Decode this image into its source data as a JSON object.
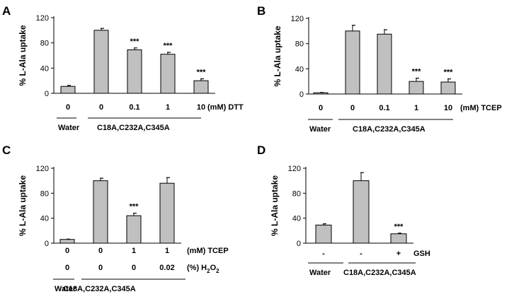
{
  "chart_data": [
    {
      "panel_label": "A",
      "type": "bar",
      "ylabel": "% L-Ala uptake",
      "ylim": [
        0,
        120
      ],
      "yticks": [
        "0",
        "40",
        "80",
        "120"
      ],
      "values": [
        11,
        100,
        69,
        62,
        20
      ],
      "errors": [
        1.5,
        3,
        3,
        3,
        3
      ],
      "significance": [
        "",
        "",
        "***",
        "***",
        "***"
      ],
      "condition_rows": [
        {
          "values": [
            "0",
            "0",
            "0.1",
            "1",
            "10"
          ],
          "unit": "(mM) DTT"
        }
      ],
      "groups": [
        {
          "label": "Water",
          "from": 0,
          "to": 0
        },
        {
          "label": "C18A,C232A,C345A",
          "from": 1,
          "to": 4
        }
      ]
    },
    {
      "panel_label": "B",
      "type": "bar",
      "ylabel": "% L-Ala uptake",
      "ylim": [
        0,
        120
      ],
      "yticks": [
        "0",
        "40",
        "80",
        "120"
      ],
      "values": [
        2,
        100,
        95,
        20,
        19
      ],
      "errors": [
        0.5,
        9,
        7,
        5,
        5
      ],
      "significance": [
        "",
        "",
        "",
        "***",
        "***"
      ],
      "condition_rows": [
        {
          "values": [
            "0",
            "0",
            "0.1",
            "1",
            "10"
          ],
          "unit": "(mM) TCEP"
        }
      ],
      "groups": [
        {
          "label": "Water",
          "from": 0,
          "to": 0
        },
        {
          "label": "C18A,C232A,C345A",
          "from": 1,
          "to": 4
        }
      ]
    },
    {
      "panel_label": "C",
      "type": "bar",
      "ylabel": "% L-Ala uptake",
      "ylim": [
        0,
        120
      ],
      "yticks": [
        "0",
        "40",
        "80",
        "120"
      ],
      "values": [
        6,
        100,
        44,
        96
      ],
      "errors": [
        0.5,
        4,
        4,
        9
      ],
      "significance": [
        "",
        "",
        "***",
        ""
      ],
      "condition_rows": [
        {
          "values": [
            "0",
            "0",
            "1",
            "1"
          ],
          "unit": "(mM) TCEP"
        },
        {
          "values": [
            "0",
            "0",
            "0",
            "0.02"
          ],
          "unit": "(%) H",
          "unit_sub": "2",
          "unit_tail": "O",
          "unit_sub2": "2"
        }
      ],
      "groups": [
        {
          "label": "Water",
          "from": 0,
          "to": 0
        },
        {
          "label": "C18A,C232A,C345A",
          "from": 1,
          "to": 3
        }
      ]
    },
    {
      "panel_label": "D",
      "type": "bar",
      "ylabel": "% L-Ala uptake",
      "ylim": [
        0,
        120
      ],
      "yticks": [
        "0",
        "40",
        "80",
        "120"
      ],
      "values": [
        29,
        100,
        15
      ],
      "errors": [
        2,
        13,
        1
      ],
      "significance": [
        "",
        "",
        "***"
      ],
      "condition_rows": [
        {
          "values": [
            "-",
            "-",
            "+"
          ],
          "unit": "GSH"
        }
      ],
      "groups": [
        {
          "label": "Water",
          "from": 0,
          "to": 0
        },
        {
          "label": "C18A,C232A,C345A",
          "from": 1,
          "to": 2
        }
      ]
    }
  ],
  "colors": {
    "bar_fill": "#c0c0c0",
    "bar_stroke": "#000000"
  }
}
